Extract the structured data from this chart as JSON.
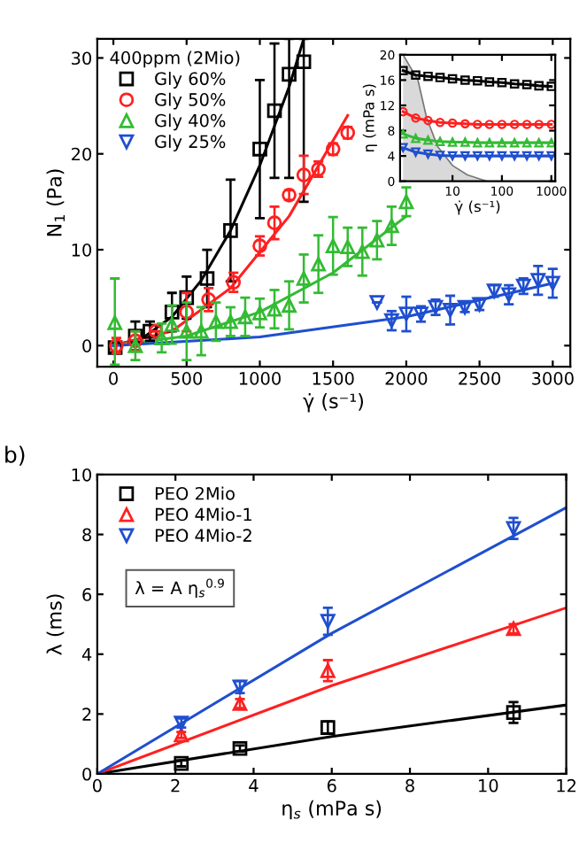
{
  "chart_data": [
    {
      "type": "scatter",
      "xlabel": "γ̇ (s⁻¹)",
      "ylabel": "N$_{1}$ (Pa)",
      "legend_title": "400ppm (2Mio)",
      "legend": "top left",
      "grid": false,
      "xlim": [
        -110,
        3120
      ],
      "ylim": [
        -2.2,
        32
      ],
      "xticks": [
        0,
        500,
        1000,
        1500,
        2000,
        2500,
        3000
      ],
      "yticks": [
        0,
        10,
        20,
        30
      ],
      "series": [
        {
          "name": "Gly 60%",
          "color": "#000000",
          "marker": "square",
          "x": [
            12,
            150,
            250,
            400,
            500,
            640,
            800,
            1000,
            1100,
            1200,
            1300
          ],
          "values": [
            -0.2,
            1,
            1.5,
            3.5,
            5,
            7,
            12,
            20.5,
            24.5,
            28.3,
            29.6
          ],
          "errors": [
            0.5,
            1.5,
            1,
            2,
            2.2,
            3,
            5.3,
            7.2,
            7,
            [
              17.5,
              32
            ],
            [
              15,
              32
            ]
          ]
        },
        {
          "name": "Gly 50%",
          "color": "#ff2020",
          "marker": "circle",
          "x": [
            20,
            150,
            290,
            500,
            650,
            820,
            1000,
            1100,
            1200,
            1300,
            1400,
            1500,
            1600
          ],
          "values": [
            0,
            0.5,
            1.5,
            3.5,
            4.8,
            6.6,
            10.4,
            12.8,
            15.7,
            17.8,
            18.4,
            20.5,
            22.2
          ],
          "errors": [
            0.8,
            1,
            null,
            2,
            1.2,
            1,
            1,
            1.7,
            0.5,
            2,
            0.8,
            0.6,
            0.6
          ]
        },
        {
          "name": "Gly 40%",
          "color": "#33bb33",
          "marker": "triangle",
          "x": [
            10,
            150,
            330,
            400,
            500,
            600,
            700,
            800,
            900,
            1000,
            1100,
            1200,
            1300,
            1400,
            1500,
            1600,
            1700,
            1800,
            1900,
            2000
          ],
          "values": [
            2.4,
            0,
            0.8,
            2.2,
            1.5,
            1.5,
            2.5,
            2.5,
            3,
            3.4,
            3.8,
            4.2,
            7,
            8.5,
            10.4,
            10.3,
            9.8,
            11,
            12.5,
            15
          ],
          "errors": [
            [
              -2,
              7
            ],
            1.5,
            1.5,
            2,
            3,
            2.5,
            2,
            1.5,
            2,
            1.5,
            2,
            2.5,
            2.5,
            3,
            3,
            2,
            2.5,
            2,
            2,
            1.5
          ]
        },
        {
          "name": "Gly 25%",
          "color": "#1f4fcf",
          "marker": "triangle_down",
          "x": [
            1800,
            1900,
            2000,
            2100,
            2200,
            2300,
            2400,
            2500,
            2600,
            2700,
            2800,
            2900,
            3000
          ],
          "values": [
            4.5,
            2.6,
            3.3,
            3.3,
            4,
            3.7,
            4,
            4.3,
            5.7,
            5.3,
            6.2,
            6.8,
            6.5
          ],
          "errors": [
            null,
            1,
            1.8,
            0.8,
            0.8,
            1.5,
            0.5,
            0.6,
            0.6,
            1,
            0.8,
            1.5,
            1.5
          ]
        },
        {
          "type": "line",
          "color": "#000000",
          "x": [
            0,
            200,
            400,
            600,
            800,
            1000,
            1200,
            1300
          ],
          "values": [
            0,
            0.8,
            3,
            6.8,
            12,
            18.8,
            27,
            32
          ]
        },
        {
          "type": "line",
          "color": "#ff2020",
          "x": [
            0,
            400,
            800,
            1200,
            1600
          ],
          "values": [
            0,
            1.5,
            6,
            13.5,
            24
          ]
        },
        {
          "type": "line",
          "color": "#33bb33",
          "x": [
            0,
            500,
            1000,
            1500,
            2000
          ],
          "values": [
            0,
            1,
            3.5,
            7.6,
            13.5
          ]
        },
        {
          "type": "line",
          "color": "#1f4fcf",
          "x": [
            0,
            1000,
            2000,
            3000
          ],
          "values": [
            0,
            0.9,
            3,
            6.5
          ]
        }
      ]
    },
    {
      "type": "line",
      "xlabel": "γ̇ (s⁻¹)",
      "ylabel": "η (mPa s)",
      "log": "x",
      "grid": false,
      "legend": false,
      "xlim": [
        0.87,
        1200
      ],
      "ylim": [
        0,
        20
      ],
      "xticks": [
        10,
        100,
        1000
      ],
      "yticks": [
        0,
        4,
        8,
        12,
        16,
        20
      ],
      "series": [
        {
          "type": "area",
          "color": "#d9d9d9",
          "x": [
            1,
            2,
            3,
            5,
            10,
            20,
            50
          ],
          "values": [
            20,
            16,
            10,
            5.5,
            2.5,
            1,
            0
          ]
        },
        {
          "color": "#000000",
          "marker": "square",
          "x": [
            1,
            1.8,
            3.2,
            5.6,
            10,
            18,
            32,
            56,
            100,
            180,
            320,
            560,
            1000
          ],
          "values": [
            17.5,
            16.8,
            16.6,
            16.4,
            16.2,
            16,
            15.9,
            15.7,
            15.6,
            15.4,
            15.3,
            15.1,
            15
          ]
        },
        {
          "color": "#ff2020",
          "marker": "circle",
          "x": [
            1,
            1.8,
            3.2,
            5.6,
            10,
            18,
            32,
            56,
            100,
            180,
            320,
            560,
            1000
          ],
          "values": [
            11,
            10,
            9.6,
            9.3,
            9.2,
            9.1,
            9,
            9,
            9,
            9,
            9,
            9,
            9
          ]
        },
        {
          "color": "#33bb33",
          "marker": "triangle",
          "x": [
            1,
            1.8,
            3.2,
            5.6,
            10,
            18,
            32,
            56,
            100,
            180,
            320,
            560,
            1000
          ],
          "values": [
            7.5,
            6.8,
            6.5,
            6.3,
            6.2,
            6.2,
            6.1,
            6.1,
            6.1,
            6.1,
            6.1,
            6.1,
            6.1
          ]
        },
        {
          "color": "#1f4fcf",
          "marker": "triangle_down",
          "x": [
            1,
            1.8,
            3.2,
            5.6,
            10,
            18,
            32,
            56,
            100,
            180,
            320,
            560,
            1000
          ],
          "values": [
            5.3,
            4.6,
            4.3,
            4.1,
            4,
            4,
            4,
            4,
            4,
            4,
            4,
            4,
            4
          ]
        }
      ]
    },
    {
      "type": "scatter",
      "xlabel": "η$_{s}$ (mPa s)",
      "ylabel": "λ (ms)",
      "legend": "top left",
      "grid": false,
      "annotations": [
        "b)",
        {
          "text": "λ = A η$_{s}$$^{0.9}$"
        }
      ],
      "xlim": [
        0,
        12
      ],
      "ylim": [
        0,
        10
      ],
      "xticks": [
        0,
        2,
        4,
        6,
        8,
        10,
        12
      ],
      "yticks": [
        0,
        2,
        4,
        6,
        8,
        10
      ],
      "series": [
        {
          "name": "PEO 2Mio",
          "color": "#000000",
          "marker": "square",
          "x": [
            2.15,
            3.65,
            5.9,
            10.65
          ],
          "values": [
            0.35,
            0.85,
            1.55,
            2.05
          ],
          "errors": [
            0.1,
            0.1,
            0.2,
            0.35
          ]
        },
        {
          "name": "PEO 4Mio-1",
          "color": "#ff2020",
          "marker": "triangle",
          "x": [
            2.15,
            3.65,
            5.9,
            10.65
          ],
          "values": [
            1.3,
            2.35,
            3.45,
            4.85
          ],
          "errors": [
            0.1,
            0.15,
            0.35,
            0.15
          ]
        },
        {
          "name": "PEO 4Mio-2",
          "color": "#1f4fcf",
          "marker": "triangle_down",
          "x": [
            2.15,
            3.65,
            5.9,
            10.65
          ],
          "values": [
            1.7,
            2.9,
            5.1,
            8.2
          ],
          "errors": [
            0.15,
            0.2,
            0.45,
            0.35
          ]
        },
        {
          "type": "line",
          "color": "#000000",
          "x": [
            0,
            6,
            12
          ],
          "values": [
            0,
            1.25,
            2.3
          ]
        },
        {
          "type": "line",
          "color": "#ff2020",
          "x": [
            0,
            6,
            12
          ],
          "values": [
            0,
            2.95,
            5.55
          ]
        },
        {
          "type": "line",
          "color": "#1f4fcf",
          "x": [
            0,
            6,
            12
          ],
          "values": [
            0,
            4.7,
            8.9
          ]
        }
      ]
    }
  ]
}
